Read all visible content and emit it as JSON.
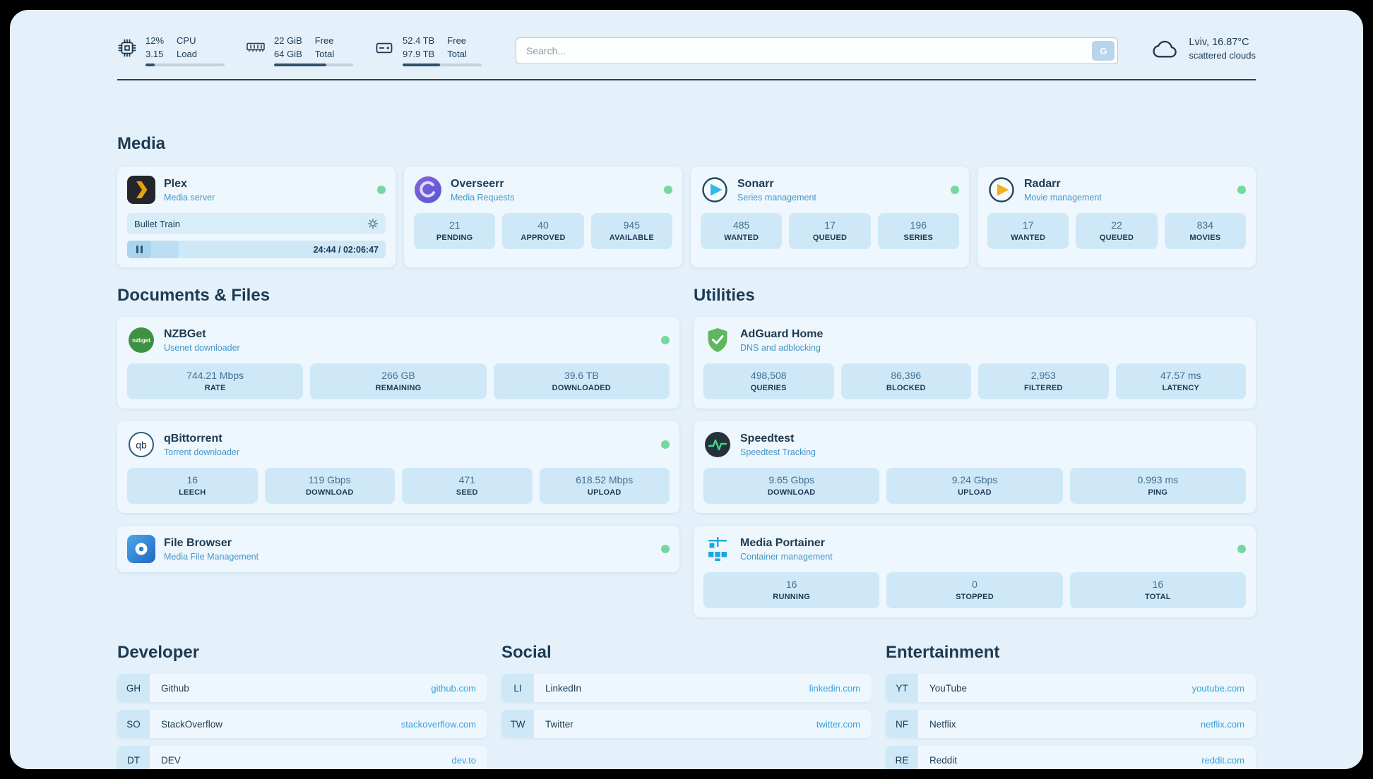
{
  "colors": {
    "accent_link": "#38a0dc",
    "status_online": "#74d89f",
    "tile_bg": "#cee8f8",
    "page_bg": "#e4f1fa"
  },
  "topbar": {
    "cpu": {
      "val_top": "12%",
      "val_bottom": "3.15",
      "lbl_top": "CPU",
      "lbl_bottom": "Load",
      "progress_pct": 12
    },
    "ram": {
      "val_top": "22 GiB",
      "val_bottom": "64 GiB",
      "lbl_top": "Free",
      "lbl_bottom": "Total",
      "progress_pct": 66
    },
    "disk": {
      "val_top": "52.4 TB",
      "val_bottom": "97.9 TB",
      "lbl_top": "Free",
      "lbl_bottom": "Total",
      "progress_pct": 47
    },
    "search": {
      "placeholder": "Search...",
      "button_label": "G"
    },
    "weather": {
      "location": "Lviv, 16.87°C",
      "condition": "scattered clouds"
    }
  },
  "sections": {
    "media": {
      "title": "Media",
      "plex": {
        "name": "Plex",
        "subtitle": "Media server",
        "now_playing": "Bullet Train",
        "time": "24:44 / 02:06:47",
        "progress_pct": 20
      },
      "overseerr": {
        "name": "Overseerr",
        "subtitle": "Media Requests",
        "stats": [
          {
            "value": "21",
            "label": "PENDING"
          },
          {
            "value": "40",
            "label": "APPROVED"
          },
          {
            "value": "945",
            "label": "AVAILABLE"
          }
        ]
      },
      "sonarr": {
        "name": "Sonarr",
        "subtitle": "Series management",
        "stats": [
          {
            "value": "485",
            "label": "WANTED"
          },
          {
            "value": "17",
            "label": "QUEUED"
          },
          {
            "value": "196",
            "label": "SERIES"
          }
        ]
      },
      "radarr": {
        "name": "Radarr",
        "subtitle": "Movie management",
        "stats": [
          {
            "value": "17",
            "label": "WANTED"
          },
          {
            "value": "22",
            "label": "QUEUED"
          },
          {
            "value": "834",
            "label": "MOVIES"
          }
        ]
      }
    },
    "documents": {
      "title": "Documents & Files",
      "nzbget": {
        "name": "NZBGet",
        "subtitle": "Usenet downloader",
        "stats": [
          {
            "value": "744.21 Mbps",
            "label": "RATE"
          },
          {
            "value": "266 GB",
            "label": "REMAINING"
          },
          {
            "value": "39.6 TB",
            "label": "DOWNLOADED"
          }
        ]
      },
      "qbittorrent": {
        "name": "qBittorrent",
        "subtitle": "Torrent downloader",
        "stats": [
          {
            "value": "16",
            "label": "LEECH"
          },
          {
            "value": "119 Gbps",
            "label": "DOWNLOAD"
          },
          {
            "value": "471",
            "label": "SEED"
          },
          {
            "value": "618.52 Mbps",
            "label": "UPLOAD"
          }
        ]
      },
      "filebrowser": {
        "name": "File Browser",
        "subtitle": "Media File Management"
      }
    },
    "utilities": {
      "title": "Utilities",
      "adguard": {
        "name": "AdGuard Home",
        "subtitle": "DNS and adblocking",
        "stats": [
          {
            "value": "498,508",
            "label": "QUERIES"
          },
          {
            "value": "86,396",
            "label": "BLOCKED"
          },
          {
            "value": "2,953",
            "label": "FILTERED"
          },
          {
            "value": "47.57 ms",
            "label": "LATENCY"
          }
        ]
      },
      "speedtest": {
        "name": "Speedtest",
        "subtitle": "Speedtest Tracking",
        "stats": [
          {
            "value": "9.65 Gbps",
            "label": "DOWNLOAD"
          },
          {
            "value": "9.24 Gbps",
            "label": "UPLOAD"
          },
          {
            "value": "0.993 ms",
            "label": "PING"
          }
        ]
      },
      "portainer": {
        "name": "Media Portainer",
        "subtitle": "Container management",
        "stats": [
          {
            "value": "16",
            "label": "RUNNING"
          },
          {
            "value": "0",
            "label": "STOPPED"
          },
          {
            "value": "16",
            "label": "TOTAL"
          }
        ]
      }
    },
    "bookmarks": [
      {
        "title": "Developer",
        "items": [
          {
            "abbr": "GH",
            "name": "Github",
            "url": "github.com"
          },
          {
            "abbr": "SO",
            "name": "StackOverflow",
            "url": "stackoverflow.com"
          },
          {
            "abbr": "DT",
            "name": "DEV",
            "url": "dev.to"
          }
        ]
      },
      {
        "title": "Social",
        "items": [
          {
            "abbr": "LI",
            "name": "LinkedIn",
            "url": "linkedin.com"
          },
          {
            "abbr": "TW",
            "name": "Twitter",
            "url": "twitter.com"
          }
        ]
      },
      {
        "title": "Entertainment",
        "items": [
          {
            "abbr": "YT",
            "name": "YouTube",
            "url": "youtube.com"
          },
          {
            "abbr": "NF",
            "name": "Netflix",
            "url": "netflix.com"
          },
          {
            "abbr": "RE",
            "name": "Reddit",
            "url": "reddit.com"
          }
        ]
      }
    ]
  }
}
